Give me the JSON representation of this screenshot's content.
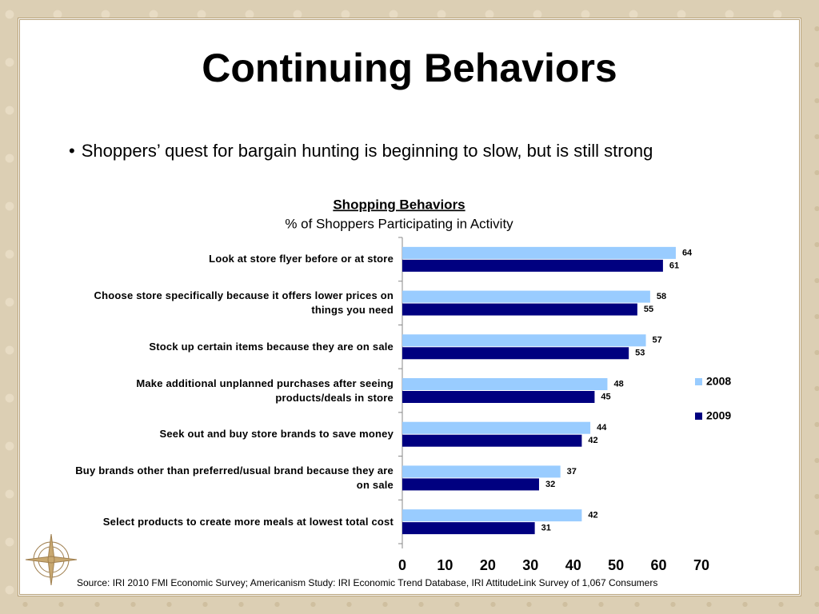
{
  "title": "Continuing Behaviors",
  "bullet": "Shoppers’ quest for bargain hunting is beginning to slow, but is still strong",
  "source": "Source: IRI 2010 FMI Economic Survey; Americanism Study: IRI Economic Trend Database, IRI AttitudeLink Survey of 1,067 Consumers",
  "chart_data": {
    "type": "bar",
    "orientation": "horizontal",
    "title": "Shopping Behaviors",
    "subtitle": "% of Shoppers Participating in Activity",
    "categories": [
      "Look at store flyer before or at store",
      "Choose store specifically because it offers lower prices on things you need",
      "Stock up certain items because they are on sale",
      "Make additional unplanned purchases after seeing products/deals in store",
      "Seek out and buy store brands to save money",
      "Buy brands other than preferred/usual brand because they are on sale",
      "Select products to create more meals at lowest total cost"
    ],
    "series": [
      {
        "name": "2008",
        "color": "#99ccff",
        "values": [
          64,
          58,
          57,
          48,
          44,
          37,
          42
        ]
      },
      {
        "name": "2009",
        "color": "#000080",
        "values": [
          61,
          55,
          53,
          45,
          42,
          32,
          31
        ]
      }
    ],
    "xlim": [
      0,
      70
    ],
    "xticks": [
      0,
      10,
      20,
      30,
      40,
      50,
      60,
      70
    ],
    "legend": "right",
    "grid": false
  }
}
